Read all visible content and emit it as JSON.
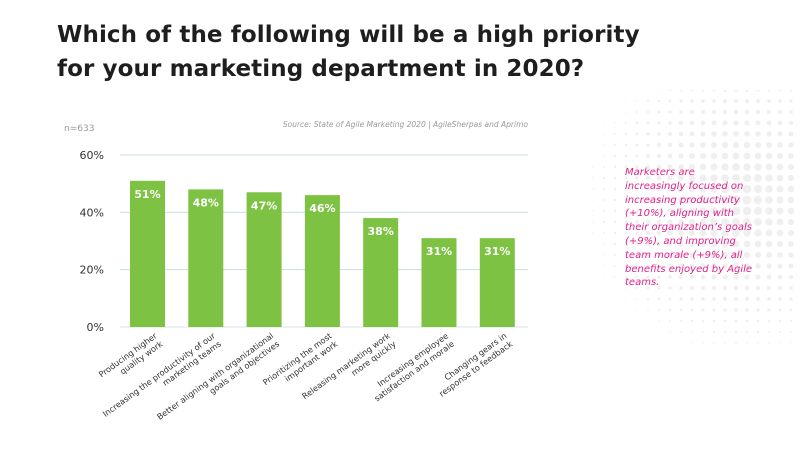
{
  "title": "Which of the following will be a high priority for your marketing department in 2020?",
  "sample_size": "n=633",
  "source": "Source: State of Agile Marketing 2020 | AgileSherpas and Aprimo",
  "side_note": "Marketers are increasingly focused on increasing productivity (+10%), aligning with their organization’s goals (+9%), and improving team morale (+9%), all benefits enjoyed by Agile teams.",
  "colors": {
    "bar": "#7dc242",
    "gridline": "#c8dfe0",
    "axis_text": "#333333",
    "accent_text": "#e0218a"
  },
  "chart_data": {
    "type": "bar",
    "categories": [
      "Producing higher quality work",
      "Increasing the productivity of our marketing teams",
      "Better aligning with organizational goals and objectives",
      "Prioritizing the most important work",
      "Releasing marketing work more quickly",
      "Increasing employee satisfaction and morale",
      "Changing gears in response to feedback"
    ],
    "category_lines": [
      [
        "Producing higher",
        "quality work"
      ],
      [
        "Increasing the productivity of our",
        "marketing teams"
      ],
      [
        "Better aligning with organizational",
        "goals and objectives"
      ],
      [
        "Prioritizing the most",
        "important work"
      ],
      [
        "Releasing marketing work",
        "more quickly"
      ],
      [
        "Increasing employee",
        "satisfaction and morale"
      ],
      [
        "Changing gears in",
        "response to feedback"
      ]
    ],
    "values": [
      51,
      48,
      47,
      46,
      38,
      31,
      31
    ],
    "value_labels": [
      "51%",
      "48%",
      "47%",
      "46%",
      "38%",
      "31%",
      "31%"
    ],
    "yticks": [
      "0%",
      "20%",
      "40%",
      "60%"
    ],
    "ytick_values": [
      0,
      20,
      40,
      60
    ],
    "ylim": [
      0,
      60
    ],
    "grid": true,
    "legend": "none"
  }
}
